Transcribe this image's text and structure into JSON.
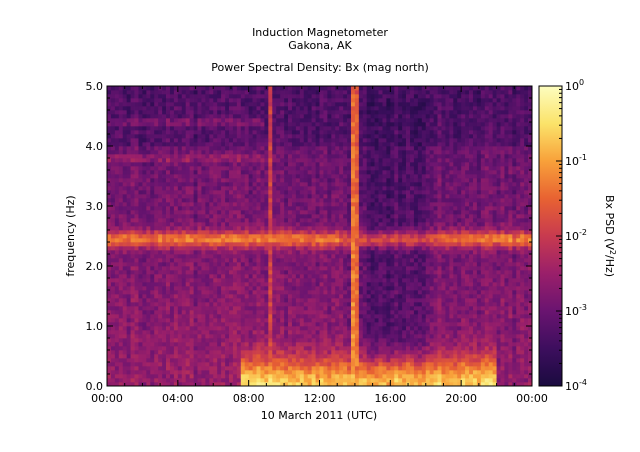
{
  "chart_data": {
    "type": "heatmap",
    "title": "Induction Magnetometer",
    "subtitle": "Gakona, AK",
    "plot_title": "Power Spectral Density: Bx (mag north)",
    "xlabel": "10 March 2011 (UTC)",
    "ylabel": "frequency (Hz)",
    "x_ticks": [
      "00:00",
      "04:00",
      "08:00",
      "12:00",
      "16:00",
      "20:00",
      "00:00"
    ],
    "y_ticks": [
      "0.0",
      "1.0",
      "2.0",
      "3.0",
      "4.0",
      "5.0"
    ],
    "xlim_hours": [
      0,
      24
    ],
    "ylim": [
      0,
      5.0
    ],
    "colorbar": {
      "label_main": "Bx PSD (",
      "label_unit": "V",
      "label_exp": "2",
      "label_tail": "/Hz)",
      "scale": "log",
      "range": [
        0.0001,
        1
      ],
      "tick_base": "10",
      "tick_exponents": [
        "-4",
        "-3",
        "-2",
        "-1",
        "0"
      ],
      "colormap": [
        "#1a0b3f",
        "#3d0e5e",
        "#6a1470",
        "#9a1f6a",
        "#c83a4f",
        "#e86232",
        "#f8a13a",
        "#fbe36a",
        "#fcfdbf"
      ]
    },
    "features": [
      {
        "name": "Pc1 band",
        "freq_center_hz": 2.45,
        "freq_halfwidth_hz": 0.15,
        "hours": [
          0,
          24
        ],
        "log_psd": -1.3
      },
      {
        "name": "low-frequency activity",
        "freq_max_hz": 0.6,
        "hours": [
          7.5,
          22
        ],
        "log_psd": -0.8
      },
      {
        "name": "vertical burst",
        "hour": 9.3,
        "log_psd": -2.0
      },
      {
        "name": "vertical burst",
        "hour": 14.0,
        "log_psd": -1.2
      },
      {
        "name": "quiet interval",
        "hours": [
          13,
          19
        ],
        "log_psd": -3.6
      }
    ]
  }
}
